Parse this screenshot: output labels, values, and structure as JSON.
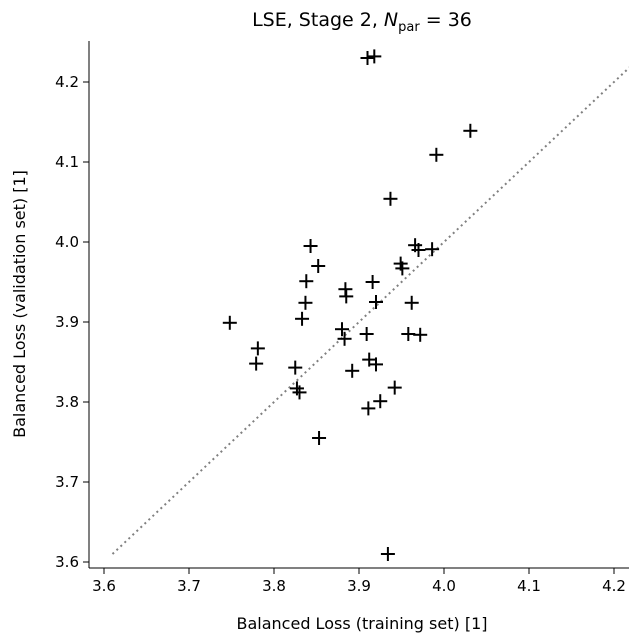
{
  "chart_data": {
    "type": "scatter",
    "title_prefix": "LSE, Stage 2, ",
    "title_symbol": "N",
    "title_subscript": "par",
    "title_suffix": " = 36",
    "xlabel": "Balanced Loss (training set) [1]",
    "ylabel": "Balanced Loss (validation set) [1]",
    "xlim": [
      3.59,
      4.25
    ],
    "ylim": [
      3.59,
      4.25
    ],
    "xticks": [
      "3.6",
      "3.7",
      "3.8",
      "3.9",
      "4.0",
      "4.1",
      "4.2"
    ],
    "yticks": [
      "3.6",
      "3.7",
      "3.8",
      "3.9",
      "4.0",
      "4.1",
      "4.2"
    ],
    "marker": "plus",
    "marker_color": "#000000",
    "diagonal_line": {
      "from": [
        3.61,
        3.61
      ],
      "to": [
        4.23,
        4.23
      ],
      "style": "dotted",
      "color": "#808080"
    },
    "grid": false,
    "points": [
      {
        "x": 3.91,
        "y": 4.23
      },
      {
        "x": 3.918,
        "y": 4.232
      },
      {
        "x": 4.031,
        "y": 4.139
      },
      {
        "x": 3.991,
        "y": 4.109
      },
      {
        "x": 3.937,
        "y": 4.054
      },
      {
        "x": 3.843,
        "y": 3.995
      },
      {
        "x": 3.966,
        "y": 3.996
      },
      {
        "x": 3.97,
        "y": 3.99
      },
      {
        "x": 3.986,
        "y": 3.991
      },
      {
        "x": 3.852,
        "y": 3.97
      },
      {
        "x": 3.949,
        "y": 3.973
      },
      {
        "x": 3.951,
        "y": 3.967
      },
      {
        "x": 3.838,
        "y": 3.951
      },
      {
        "x": 3.916,
        "y": 3.95
      },
      {
        "x": 3.884,
        "y": 3.941
      },
      {
        "x": 3.885,
        "y": 3.932
      },
      {
        "x": 3.837,
        "y": 3.924
      },
      {
        "x": 3.92,
        "y": 3.925
      },
      {
        "x": 3.962,
        "y": 3.924
      },
      {
        "x": 3.748,
        "y": 3.899
      },
      {
        "x": 3.833,
        "y": 3.904
      },
      {
        "x": 3.88,
        "y": 3.891
      },
      {
        "x": 3.909,
        "y": 3.885
      },
      {
        "x": 3.883,
        "y": 3.879
      },
      {
        "x": 3.958,
        "y": 3.885
      },
      {
        "x": 3.972,
        "y": 3.884
      },
      {
        "x": 3.781,
        "y": 3.867
      },
      {
        "x": 3.779,
        "y": 3.848
      },
      {
        "x": 3.912,
        "y": 3.853
      },
      {
        "x": 3.92,
        "y": 3.847
      },
      {
        "x": 3.825,
        "y": 3.843
      },
      {
        "x": 3.892,
        "y": 3.839
      },
      {
        "x": 3.827,
        "y": 3.817
      },
      {
        "x": 3.83,
        "y": 3.812
      },
      {
        "x": 3.942,
        "y": 3.818
      },
      {
        "x": 3.925,
        "y": 3.801
      },
      {
        "x": 3.911,
        "y": 3.792
      },
      {
        "x": 3.853,
        "y": 3.755
      },
      {
        "x": 3.934,
        "y": 3.61
      }
    ]
  }
}
